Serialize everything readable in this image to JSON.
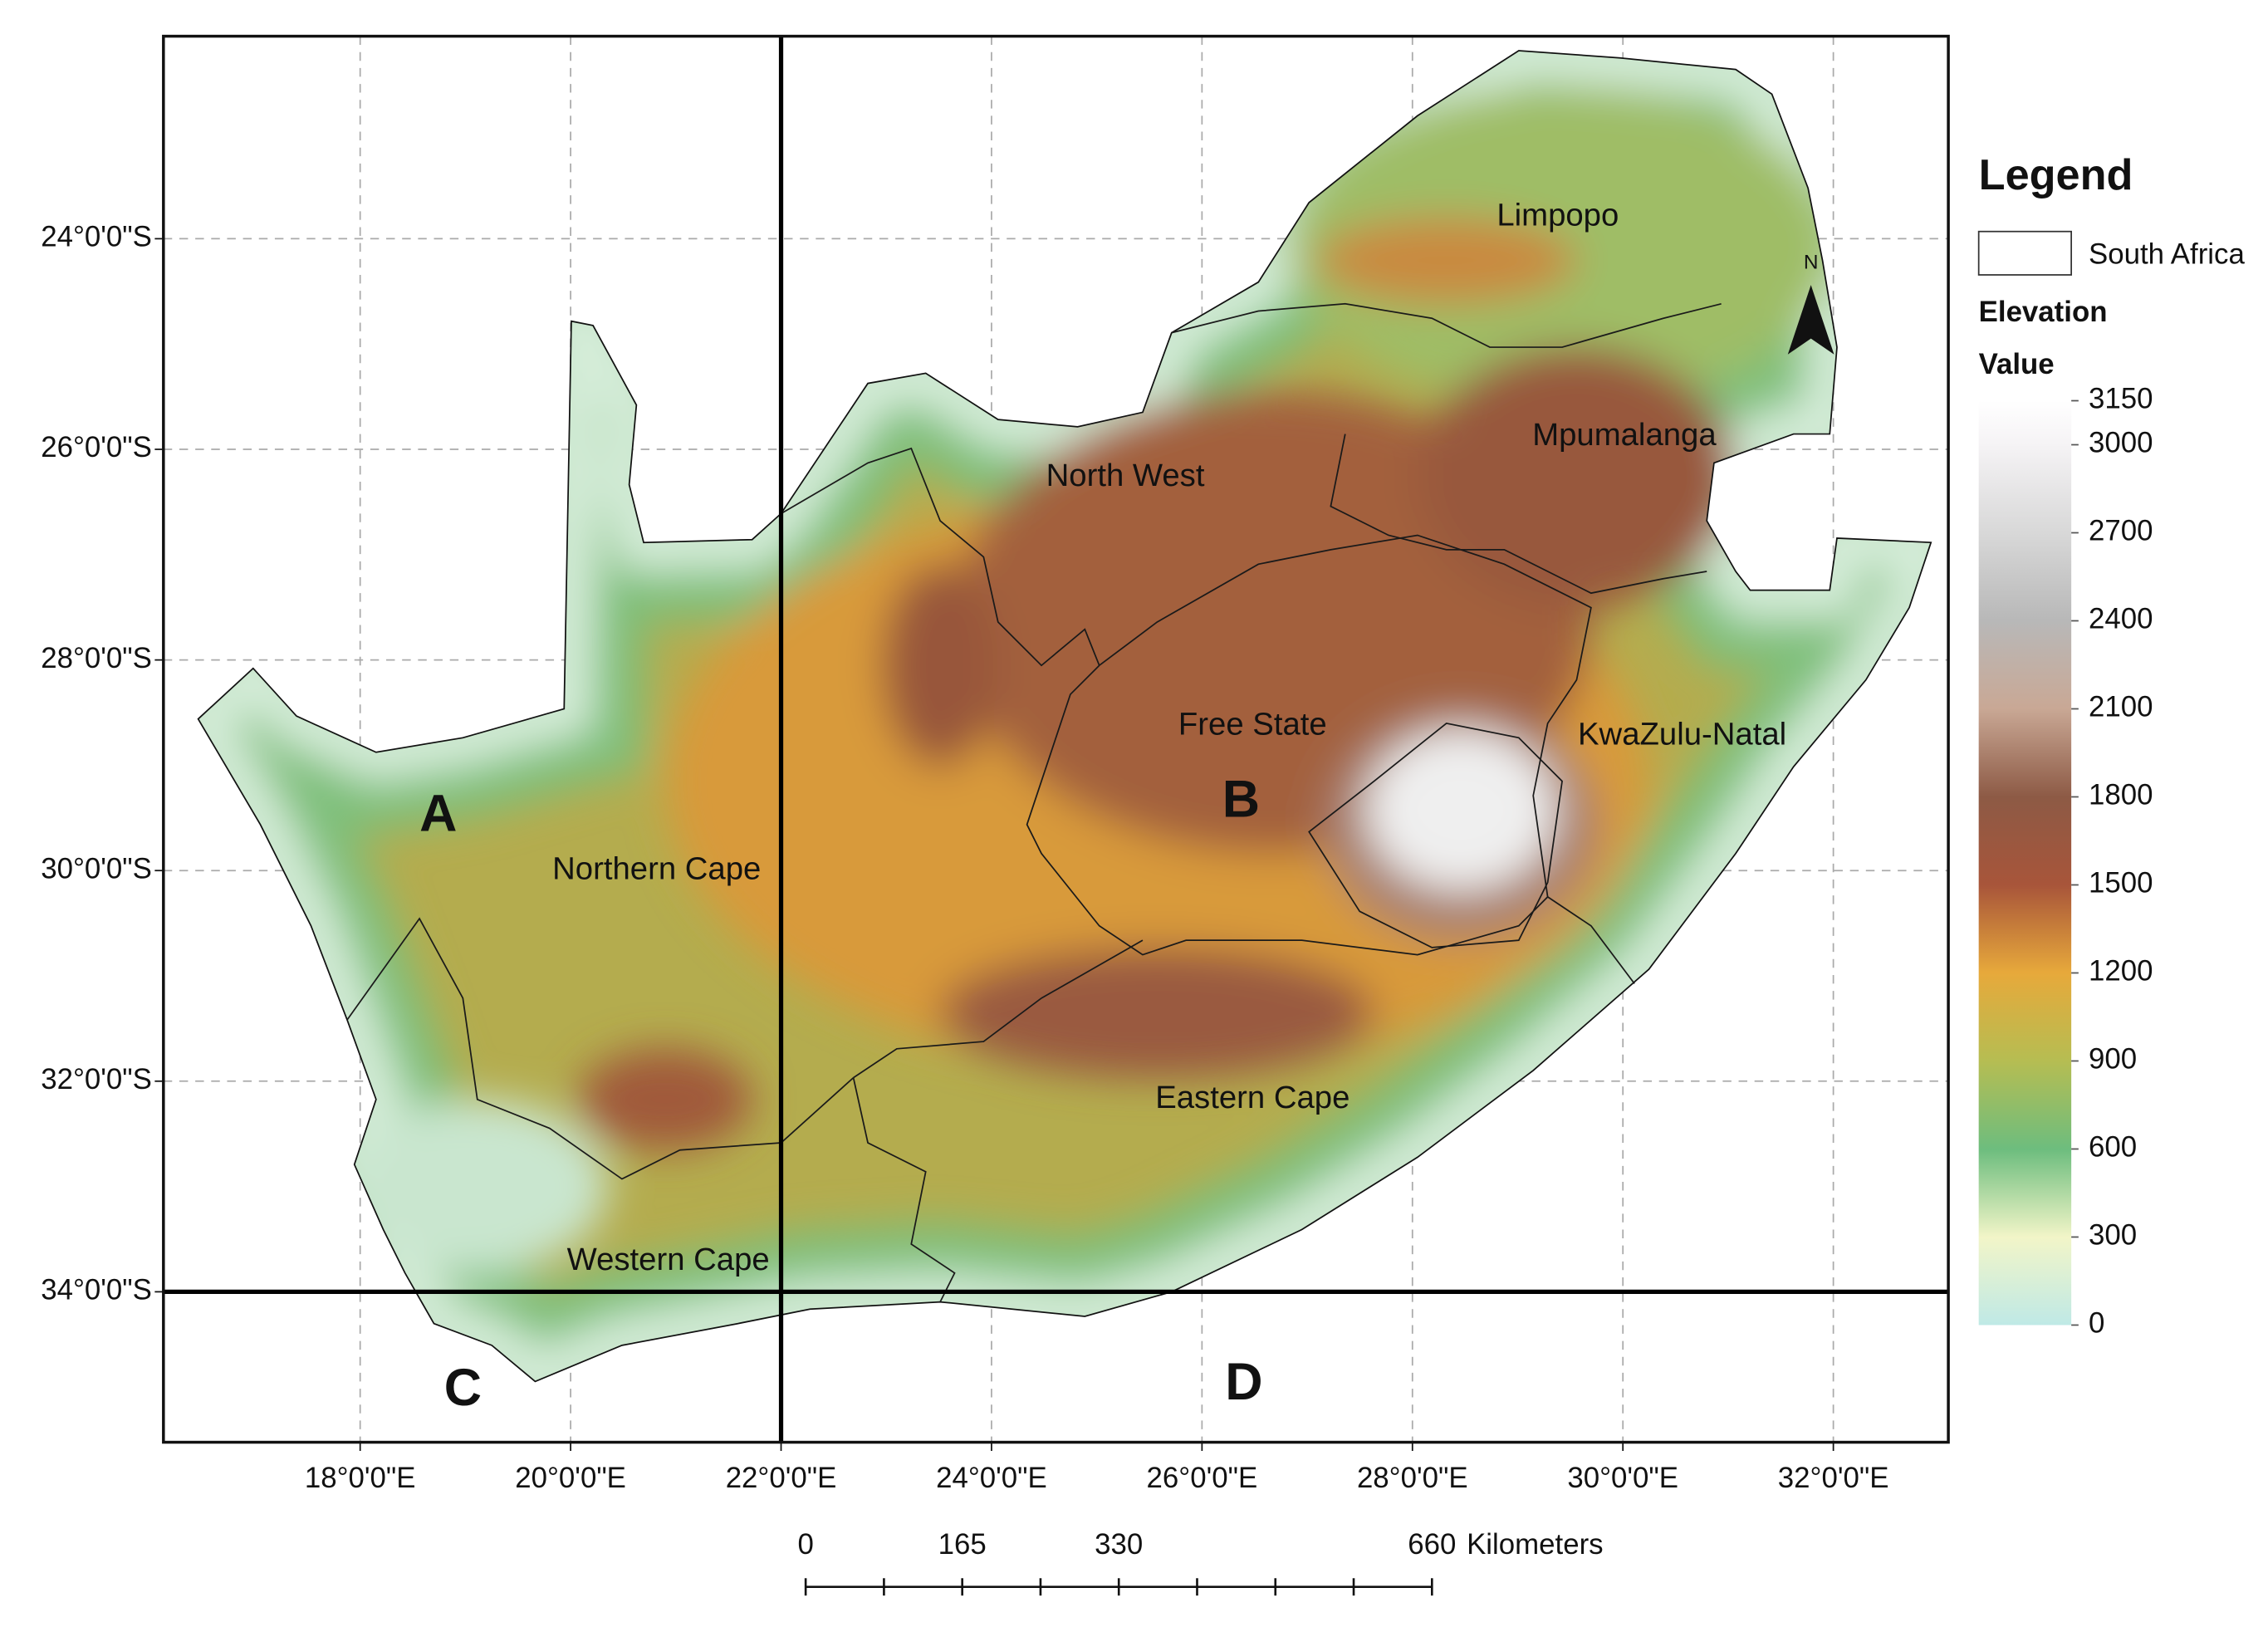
{
  "map": {
    "graticule": {
      "longitudes": [
        {
          "value": 18,
          "label": "18°0'0\"E"
        },
        {
          "value": 20,
          "label": "20°0'0\"E"
        },
        {
          "value": 22,
          "label": "22°0'0\"E"
        },
        {
          "value": 24,
          "label": "24°0'0\"E"
        },
        {
          "value": 26,
          "label": "26°0'0\"E"
        },
        {
          "value": 28,
          "label": "28°0'0\"E"
        },
        {
          "value": 30,
          "label": "30°0'0\"E"
        },
        {
          "value": 32,
          "label": "32°0'0\"E"
        }
      ],
      "latitudes": [
        {
          "value": -24,
          "label": "24°0'0\"S"
        },
        {
          "value": -26,
          "label": "26°0'0\"S"
        },
        {
          "value": -28,
          "label": "28°0'0\"S"
        },
        {
          "value": -30,
          "label": "30°0'0\"S"
        },
        {
          "value": -32,
          "label": "32°0'0\"S"
        },
        {
          "value": -34,
          "label": "34°0'0\"S"
        }
      ]
    },
    "regions": [
      "Limpopo",
      "Mpumalanga",
      "North West",
      "Free State",
      "KwaZulu-Natal",
      "Northern Cape",
      "Eastern Cape",
      "Western Cape"
    ],
    "quadrants": [
      "A",
      "B",
      "C",
      "D"
    ],
    "legend": {
      "title": "Legend",
      "boundary": "South Africa",
      "field": "Elevation",
      "subtitle": "Value",
      "ticks": [
        3150,
        3000,
        2700,
        2400,
        2100,
        1800,
        1500,
        1200,
        900,
        600,
        300,
        0
      ]
    },
    "scale_bar": {
      "ticks": [
        0,
        165,
        330,
        660
      ],
      "unit": "Kilometers"
    },
    "north_arrow": "N"
  }
}
